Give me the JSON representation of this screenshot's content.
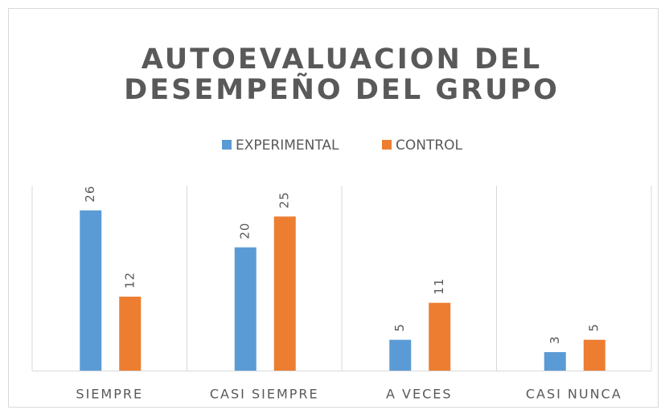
{
  "chart_data": {
    "type": "bar",
    "title": [
      "AUTOEVALUACION DEL",
      "DESEMPEÑO DEL GRUPO"
    ],
    "categories": [
      "SIEMPRE",
      "CASI SIEMPRE",
      "A VECES",
      "CASI NUNCA"
    ],
    "series": [
      {
        "name": "EXPERIMENTAL",
        "color": "#5b9bd5",
        "values": [
          26,
          20,
          5,
          3
        ]
      },
      {
        "name": "CONTROL",
        "color": "#ed7d31",
        "values": [
          12,
          25,
          11,
          5
        ]
      }
    ],
    "ylim": [
      0,
      30
    ],
    "legend": "top"
  }
}
